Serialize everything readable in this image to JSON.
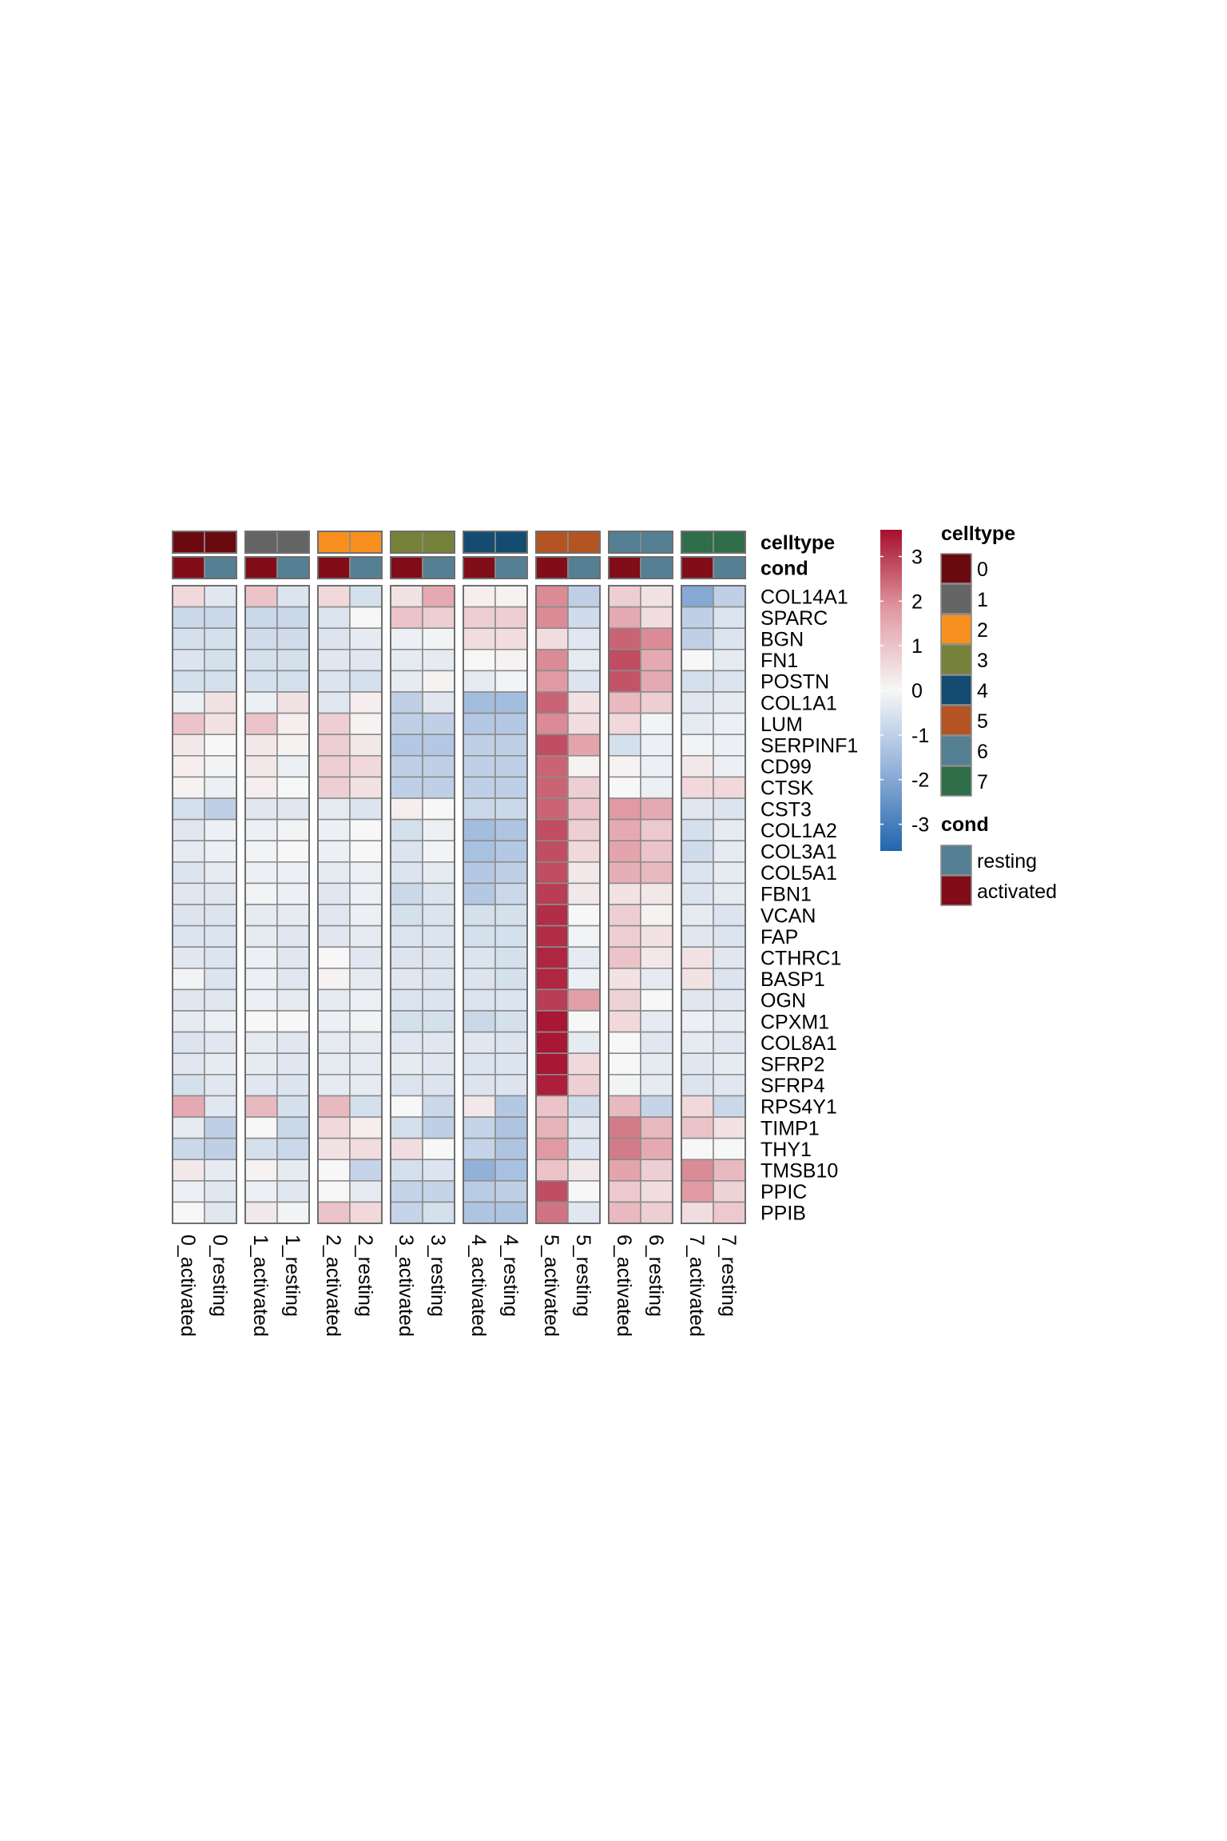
{
  "chart_data": {
    "type": "heatmap",
    "title": "",
    "rows": [
      "COL14A1",
      "SPARC",
      "BGN",
      "FN1",
      "POSTN",
      "COL1A1",
      "LUM",
      "SERPINF1",
      "CD99",
      "CTSK",
      "CST3",
      "COL1A2",
      "COL3A1",
      "COL5A1",
      "FBN1",
      "VCAN",
      "FAP",
      "CTHRC1",
      "BASP1",
      "OGN",
      "CPXM1",
      "COL8A1",
      "SFRP2",
      "SFRP4",
      "RPS4Y1",
      "TIMP1",
      "THY1",
      "TMSB10",
      "PPIC",
      "PPIB"
    ],
    "columns": [
      "0_activated",
      "0_resting",
      "1_activated",
      "1_resting",
      "2_activated",
      "2_resting",
      "3_activated",
      "3_resting",
      "4_activated",
      "4_resting",
      "5_activated",
      "5_resting",
      "6_activated",
      "6_resting",
      "7_activated",
      "7_resting"
    ],
    "column_groups": [
      "0",
      "1",
      "2",
      "3",
      "4",
      "5",
      "6",
      "7"
    ],
    "column_celltype": [
      "0",
      "0",
      "1",
      "1",
      "2",
      "2",
      "3",
      "3",
      "4",
      "4",
      "5",
      "5",
      "6",
      "6",
      "7",
      "7"
    ],
    "column_cond": [
      "activated",
      "resting",
      "activated",
      "resting",
      "activated",
      "resting",
      "activated",
      "resting",
      "activated",
      "resting",
      "activated",
      "resting",
      "activated",
      "resting",
      "activated",
      "resting"
    ],
    "values": [
      [
        0.6,
        -0.4,
        1.0,
        -0.5,
        0.6,
        -0.6,
        0.4,
        1.5,
        0.2,
        0.1,
        2.0,
        -1.0,
        0.8,
        0.4,
        -2.0,
        -1.0
      ],
      [
        -0.8,
        -0.8,
        -0.8,
        -0.8,
        -0.5,
        0.0,
        1.0,
        0.8,
        0.8,
        0.8,
        2.0,
        -0.7,
        1.5,
        0.5,
        -1.0,
        -0.5
      ],
      [
        -0.6,
        -0.6,
        -0.7,
        -0.7,
        -0.5,
        -0.3,
        -0.2,
        -0.1,
        0.5,
        0.5,
        0.5,
        -0.4,
        2.5,
        2.0,
        -1.0,
        -0.5
      ],
      [
        -0.5,
        -0.6,
        -0.6,
        -0.6,
        -0.4,
        -0.4,
        -0.3,
        -0.3,
        0.0,
        0.1,
        2.0,
        -0.3,
        2.8,
        1.5,
        0.0,
        -0.3
      ],
      [
        -0.6,
        -0.6,
        -0.6,
        -0.6,
        -0.5,
        -0.6,
        -0.3,
        0.1,
        -0.3,
        -0.1,
        1.8,
        -0.5,
        2.7,
        1.5,
        -0.6,
        -0.5
      ],
      [
        -0.2,
        0.4,
        -0.2,
        0.4,
        -0.4,
        0.2,
        -1.0,
        -0.4,
        -1.5,
        -1.5,
        2.5,
        0.4,
        1.2,
        0.8,
        -0.4,
        -0.3
      ],
      [
        1.0,
        0.4,
        1.0,
        0.2,
        0.8,
        0.1,
        -1.0,
        -1.0,
        -1.2,
        -1.2,
        2.0,
        0.5,
        0.6,
        -0.1,
        -0.3,
        -0.2
      ],
      [
        0.3,
        0.0,
        0.3,
        0.1,
        0.8,
        0.3,
        -1.2,
        -1.2,
        -1.0,
        -1.0,
        2.8,
        1.6,
        -0.6,
        -0.2,
        -0.1,
        -0.2
      ],
      [
        0.2,
        -0.1,
        0.3,
        -0.2,
        0.8,
        0.6,
        -1.0,
        -1.0,
        -1.0,
        -1.0,
        2.5,
        0.1,
        0.1,
        -0.2,
        0.3,
        -0.2
      ],
      [
        0.1,
        -0.2,
        0.2,
        0.0,
        0.8,
        0.4,
        -1.0,
        -1.0,
        -1.0,
        -1.0,
        2.5,
        0.8,
        0.0,
        -0.2,
        0.6,
        0.6
      ],
      [
        -0.6,
        -1.0,
        -0.4,
        -0.4,
        -0.3,
        -0.5,
        0.2,
        0.0,
        -0.8,
        -0.8,
        2.5,
        1.0,
        1.8,
        1.5,
        -0.4,
        -0.5
      ],
      [
        -0.4,
        -0.2,
        -0.2,
        -0.1,
        -0.2,
        0.0,
        -0.6,
        -0.2,
        -1.5,
        -1.3,
        2.8,
        0.8,
        1.5,
        0.9,
        -0.6,
        -0.3
      ],
      [
        -0.3,
        -0.2,
        -0.1,
        0.0,
        -0.2,
        0.0,
        -0.5,
        -0.1,
        -1.4,
        -1.2,
        2.8,
        0.6,
        1.6,
        1.0,
        -0.7,
        -0.3
      ],
      [
        -0.5,
        -0.3,
        -0.2,
        -0.2,
        -0.3,
        -0.2,
        -0.5,
        -0.3,
        -1.2,
        -1.0,
        2.8,
        0.3,
        1.4,
        1.2,
        -0.5,
        -0.3
      ],
      [
        -0.4,
        -0.4,
        -0.1,
        -0.2,
        -0.4,
        -0.2,
        -0.8,
        -0.5,
        -1.2,
        -0.8,
        3.0,
        0.3,
        0.4,
        0.3,
        -0.5,
        -0.3
      ],
      [
        -0.5,
        -0.5,
        -0.3,
        -0.3,
        -0.4,
        -0.2,
        -0.6,
        -0.5,
        -0.6,
        -0.6,
        3.2,
        0.0,
        0.8,
        0.1,
        -0.3,
        -0.5
      ],
      [
        -0.5,
        -0.5,
        -0.3,
        -0.4,
        -0.4,
        -0.3,
        -0.5,
        -0.5,
        -0.6,
        -0.6,
        3.2,
        -0.1,
        0.8,
        0.4,
        -0.4,
        -0.5
      ],
      [
        -0.4,
        -0.5,
        -0.2,
        -0.4,
        0.0,
        -0.4,
        -0.5,
        -0.5,
        -0.5,
        -0.6,
        3.3,
        -0.3,
        1.0,
        0.3,
        0.4,
        -0.4
      ],
      [
        -0.1,
        -0.5,
        -0.2,
        -0.4,
        0.1,
        -0.3,
        -0.4,
        -0.5,
        -0.5,
        -0.6,
        3.3,
        -0.2,
        0.4,
        -0.3,
        0.4,
        -0.5
      ],
      [
        -0.4,
        -0.4,
        -0.2,
        -0.3,
        -0.3,
        -0.2,
        -0.5,
        -0.5,
        -0.5,
        -0.5,
        3.0,
        1.7,
        0.7,
        0.0,
        -0.4,
        -0.4
      ],
      [
        -0.3,
        -0.2,
        0.0,
        0.0,
        -0.2,
        -0.1,
        -0.6,
        -0.6,
        -0.8,
        -0.6,
        3.5,
        0.0,
        0.6,
        -0.3,
        -0.2,
        -0.3
      ],
      [
        -0.5,
        -0.4,
        -0.3,
        -0.4,
        -0.3,
        -0.3,
        -0.4,
        -0.4,
        -0.4,
        -0.5,
        3.5,
        -0.3,
        0.0,
        -0.4,
        -0.3,
        -0.4
      ],
      [
        -0.4,
        -0.3,
        -0.3,
        -0.4,
        -0.3,
        -0.3,
        -0.3,
        -0.4,
        -0.5,
        -0.5,
        3.5,
        0.6,
        0.0,
        -0.3,
        -0.4,
        -0.3
      ],
      [
        -0.6,
        -0.4,
        -0.4,
        -0.5,
        -0.3,
        -0.3,
        -0.5,
        -0.5,
        -0.5,
        -0.5,
        3.4,
        0.8,
        -0.1,
        -0.3,
        -0.5,
        -0.4
      ],
      [
        1.5,
        -0.4,
        1.2,
        -0.6,
        1.2,
        -0.6,
        0.0,
        -0.8,
        0.3,
        -1.2,
        1.0,
        -0.7,
        1.2,
        -0.9,
        0.6,
        -0.8
      ],
      [
        -0.3,
        -1.0,
        0.0,
        -0.8,
        0.6,
        0.2,
        -0.6,
        -1.0,
        -0.9,
        -1.3,
        1.3,
        -0.4,
        2.2,
        1.2,
        1.0,
        0.4
      ],
      [
        -0.8,
        -1.0,
        -0.6,
        -0.8,
        0.4,
        0.5,
        0.5,
        0.0,
        -0.9,
        -1.3,
        1.8,
        -0.5,
        2.2,
        1.5,
        0.0,
        0.0
      ],
      [
        0.3,
        -0.3,
        0.1,
        -0.3,
        0.0,
        -0.9,
        -0.6,
        -0.5,
        -1.8,
        -1.4,
        1.0,
        0.3,
        1.6,
        0.8,
        2.0,
        1.2
      ],
      [
        -0.2,
        -0.4,
        -0.2,
        -0.4,
        0.0,
        -0.3,
        -0.9,
        -0.9,
        -1.1,
        -1.0,
        2.8,
        0.0,
        0.9,
        0.5,
        1.8,
        0.7
      ],
      [
        0.0,
        -0.4,
        0.3,
        -0.1,
        1.0,
        0.6,
        -0.9,
        -0.6,
        -1.3,
        -1.3,
        2.3,
        -0.4,
        1.2,
        0.8,
        0.5,
        0.9
      ]
    ],
    "color_scale": {
      "min": -3.6,
      "max": 3.6,
      "stops": [
        {
          "v": -3.6,
          "c": "#2166ac"
        },
        {
          "v": -1.8,
          "c": "#92b1d9"
        },
        {
          "v": 0,
          "c": "#f7f7f7"
        },
        {
          "v": 1.8,
          "c": "#e19aa3"
        },
        {
          "v": 3.6,
          "c": "#a50f2d"
        }
      ],
      "ticks": [
        3,
        2,
        1,
        0,
        -1,
        -2,
        -3
      ]
    },
    "annotations": [
      {
        "name": "celltype",
        "key": "column_celltype"
      },
      {
        "name": "cond",
        "key": "column_cond"
      }
    ],
    "legends": {
      "celltype": {
        "title": "celltype",
        "items": [
          {
            "label": "0",
            "color": "#6b0a0e"
          },
          {
            "label": "1",
            "color": "#656565"
          },
          {
            "label": "2",
            "color": "#f7901e"
          },
          {
            "label": "3",
            "color": "#768139"
          },
          {
            "label": "4",
            "color": "#134c70"
          },
          {
            "label": "5",
            "color": "#b35422"
          },
          {
            "label": "6",
            "color": "#557f93"
          },
          {
            "label": "7",
            "color": "#2f6e48"
          }
        ]
      },
      "cond": {
        "title": "cond",
        "items": [
          {
            "label": "resting",
            "color": "#557f93"
          },
          {
            "label": "activated",
            "color": "#800d18"
          }
        ]
      }
    }
  }
}
